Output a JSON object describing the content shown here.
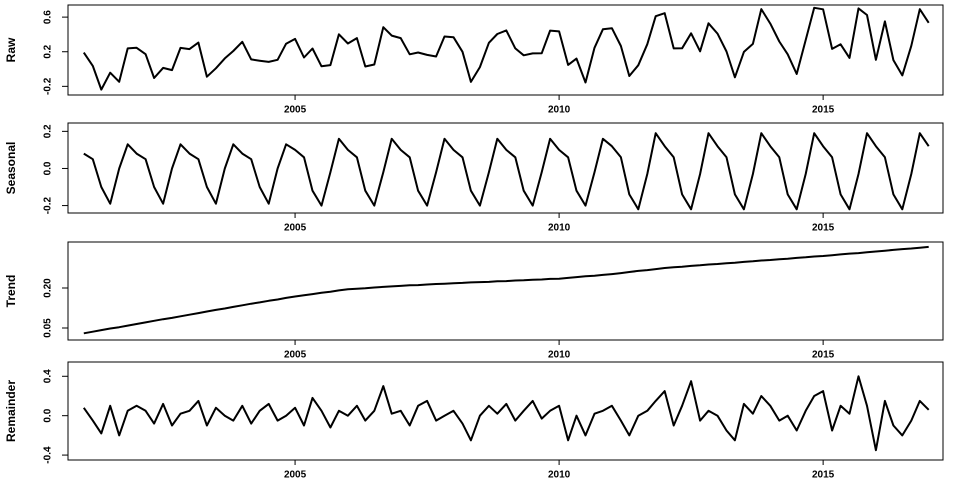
{
  "chart_data": [
    {
      "type": "line",
      "ylabel": "Raw",
      "color": "#000000",
      "x": [
        2001,
        2001.17,
        2001.33,
        2001.5,
        2001.67,
        2001.83,
        2002,
        2002.17,
        2002.33,
        2002.5,
        2002.67,
        2002.83,
        2003,
        2003.17,
        2003.33,
        2003.5,
        2003.67,
        2003.83,
        2004,
        2004.17,
        2004.33,
        2004.5,
        2004.67,
        2004.83,
        2005,
        2005.17,
        2005.33,
        2005.5,
        2005.67,
        2005.83,
        2006,
        2006.17,
        2006.33,
        2006.5,
        2006.67,
        2006.83,
        2007,
        2007.17,
        2007.33,
        2007.5,
        2007.67,
        2007.83,
        2008,
        2008.17,
        2008.33,
        2008.5,
        2008.67,
        2008.83,
        2009,
        2009.17,
        2009.33,
        2009.5,
        2009.67,
        2009.83,
        2010,
        2010.17,
        2010.33,
        2010.5,
        2010.67,
        2010.83,
        2011,
        2011.17,
        2011.33,
        2011.5,
        2011.67,
        2011.83,
        2012,
        2012.17,
        2012.33,
        2012.5,
        2012.67,
        2012.83,
        2013,
        2013.17,
        2013.33,
        2013.5,
        2013.67,
        2013.83,
        2014,
        2014.17,
        2014.33,
        2014.5,
        2014.67,
        2014.83,
        2015,
        2015.17,
        2015.33,
        2015.5,
        2015.67,
        2015.83,
        2016,
        2016.17,
        2016.33,
        2016.5,
        2016.67,
        2016.83,
        2017
      ],
      "values": [
        0.19,
        0.036,
        -0.238,
        -0.042,
        -0.147,
        0.239,
        0.245,
        0.171,
        -0.103,
        0.013,
        -0.012,
        0.244,
        0.23,
        0.306,
        -0.088,
        0.008,
        0.123,
        0.209,
        0.315,
        0.111,
        0.096,
        0.082,
        0.107,
        0.293,
        0.348,
        0.133,
        0.237,
        0.032,
        0.046,
        0.401,
        0.295,
        0.357,
        0.029,
        0.052,
        0.484,
        0.386,
        0.358,
        0.17,
        0.191,
        0.163,
        0.145,
        0.376,
        0.368,
        0.199,
        -0.149,
        0.022,
        0.303,
        0.405,
        0.446,
        0.238,
        0.159,
        0.181,
        0.182,
        0.444,
        0.435,
        0.048,
        0.121,
        -0.156,
        0.246,
        0.459,
        0.472,
        0.266,
        -0.08,
        0.044,
        0.287,
        0.611,
        0.645,
        0.238,
        0.24,
        0.413,
        0.205,
        0.528,
        0.41,
        0.203,
        -0.095,
        0.198,
        0.29,
        0.693,
        0.525,
        0.318,
        0.17,
        -0.057,
        0.335,
        0.708,
        0.69,
        0.233,
        0.286,
        0.129,
        0.701,
        0.624,
        0.107,
        0.55,
        0.103,
        -0.074,
        0.268,
        0.691,
        0.534
      ],
      "xlim": [
        2000.7,
        2017.27
      ],
      "xticks": [
        2005,
        2010,
        2015
      ],
      "ylim": [
        -0.3,
        0.74
      ],
      "yticks": [
        -0.2,
        0.2,
        0.6
      ]
    },
    {
      "type": "line",
      "ylabel": "Seasonal",
      "color": "#000000",
      "x": [
        2001,
        2001.17,
        2001.33,
        2001.5,
        2001.67,
        2001.83,
        2002,
        2002.17,
        2002.33,
        2002.5,
        2002.67,
        2002.83,
        2003,
        2003.17,
        2003.33,
        2003.5,
        2003.67,
        2003.83,
        2004,
        2004.17,
        2004.33,
        2004.5,
        2004.67,
        2004.83,
        2005,
        2005.17,
        2005.33,
        2005.5,
        2005.67,
        2005.83,
        2006,
        2006.17,
        2006.33,
        2006.5,
        2006.67,
        2006.83,
        2007,
        2007.17,
        2007.33,
        2007.5,
        2007.67,
        2007.83,
        2008,
        2008.17,
        2008.33,
        2008.5,
        2008.67,
        2008.83,
        2009,
        2009.17,
        2009.33,
        2009.5,
        2009.67,
        2009.83,
        2010,
        2010.17,
        2010.33,
        2010.5,
        2010.67,
        2010.83,
        2011,
        2011.17,
        2011.33,
        2011.5,
        2011.67,
        2011.83,
        2012,
        2012.17,
        2012.33,
        2012.5,
        2012.67,
        2012.83,
        2013,
        2013.17,
        2013.33,
        2013.5,
        2013.67,
        2013.83,
        2014,
        2014.17,
        2014.33,
        2014.5,
        2014.67,
        2014.83,
        2015,
        2015.17,
        2015.33,
        2015.5,
        2015.67,
        2015.83,
        2016,
        2016.17,
        2016.33,
        2016.5,
        2016.67,
        2016.83,
        2017
      ],
      "values": [
        0.08,
        0.05,
        -0.1,
        -0.19,
        0,
        0.13,
        0.08,
        0.05,
        -0.1,
        -0.19,
        0,
        0.13,
        0.08,
        0.05,
        -0.1,
        -0.19,
        0,
        0.13,
        0.08,
        0.05,
        -0.1,
        -0.19,
        0,
        0.13,
        0.1,
        0.06,
        -0.12,
        -0.2,
        -0.02,
        0.16,
        0.1,
        0.06,
        -0.12,
        -0.2,
        -0.02,
        0.16,
        0.1,
        0.06,
        -0.12,
        -0.2,
        -0.02,
        0.16,
        0.1,
        0.06,
        -0.12,
        -0.2,
        -0.02,
        0.16,
        0.1,
        0.06,
        -0.12,
        -0.2,
        -0.02,
        0.16,
        0.1,
        0.06,
        -0.12,
        -0.2,
        -0.02,
        0.16,
        0.12,
        0.06,
        -0.14,
        -0.22,
        -0.03,
        0.19,
        0.12,
        0.06,
        -0.14,
        -0.22,
        -0.03,
        0.19,
        0.12,
        0.06,
        -0.14,
        -0.22,
        -0.03,
        0.19,
        0.12,
        0.06,
        -0.14,
        -0.22,
        -0.03,
        0.19,
        0.12,
        0.06,
        -0.14,
        -0.22,
        -0.03,
        0.19,
        0.12,
        0.06,
        -0.14,
        -0.22,
        -0.03,
        0.19,
        0.12
      ],
      "xlim": [
        2000.7,
        2017.27
      ],
      "xticks": [
        2005,
        2010,
        2015
      ],
      "ylim": [
        -0.24,
        0.245
      ],
      "yticks": [
        -0.2,
        {
          "value": 0,
          "label": "0.0"
        },
        0.2
      ]
    },
    {
      "type": "line",
      "ylabel": "Trend",
      "color": "#000000",
      "x": [
        2001,
        2001.17,
        2001.33,
        2001.5,
        2001.67,
        2001.83,
        2002,
        2002.17,
        2002.33,
        2002.5,
        2002.67,
        2002.83,
        2003,
        2003.17,
        2003.33,
        2003.5,
        2003.67,
        2003.83,
        2004,
        2004.17,
        2004.33,
        2004.5,
        2004.67,
        2004.83,
        2005,
        2005.17,
        2005.33,
        2005.5,
        2005.67,
        2005.83,
        2006,
        2006.17,
        2006.33,
        2006.5,
        2006.67,
        2006.83,
        2007,
        2007.17,
        2007.33,
        2007.5,
        2007.67,
        2007.83,
        2008,
        2008.17,
        2008.33,
        2008.5,
        2008.67,
        2008.83,
        2009,
        2009.17,
        2009.33,
        2009.5,
        2009.67,
        2009.83,
        2010,
        2010.17,
        2010.33,
        2010.5,
        2010.67,
        2010.83,
        2011,
        2011.17,
        2011.33,
        2011.5,
        2011.67,
        2011.83,
        2012,
        2012.17,
        2012.33,
        2012.5,
        2012.67,
        2012.83,
        2013,
        2013.17,
        2013.33,
        2013.5,
        2013.67,
        2013.83,
        2014,
        2014.17,
        2014.33,
        2014.5,
        2014.67,
        2014.83,
        2015,
        2015.17,
        2015.33,
        2015.5,
        2015.67,
        2015.83,
        2016,
        2016.17,
        2016.33,
        2016.5,
        2016.67,
        2016.83,
        2017
      ],
      "values": [
        0.03,
        0.036,
        0.042,
        0.048,
        0.053,
        0.059,
        0.065,
        0.071,
        0.077,
        0.083,
        0.088,
        0.094,
        0.1,
        0.106,
        0.112,
        0.118,
        0.123,
        0.129,
        0.135,
        0.141,
        0.146,
        0.152,
        0.157,
        0.163,
        0.168,
        0.173,
        0.177,
        0.182,
        0.186,
        0.191,
        0.195,
        0.197,
        0.199,
        0.202,
        0.204,
        0.206,
        0.208,
        0.21,
        0.211,
        0.213,
        0.215,
        0.216,
        0.218,
        0.219,
        0.221,
        0.222,
        0.223,
        0.225,
        0.226,
        0.228,
        0.229,
        0.231,
        0.232,
        0.234,
        0.235,
        0.238,
        0.241,
        0.244,
        0.246,
        0.249,
        0.252,
        0.256,
        0.26,
        0.264,
        0.267,
        0.271,
        0.275,
        0.278,
        0.28,
        0.283,
        0.285,
        0.288,
        0.29,
        0.293,
        0.295,
        0.298,
        0.3,
        0.303,
        0.305,
        0.308,
        0.31,
        0.313,
        0.315,
        0.318,
        0.32,
        0.323,
        0.326,
        0.329,
        0.331,
        0.334,
        0.337,
        0.34,
        0.343,
        0.346,
        0.348,
        0.351,
        0.354
      ],
      "xlim": [
        2000.7,
        2017.27
      ],
      "xticks": [
        2005,
        2010,
        2015
      ],
      "ylim": [
        0.005,
        0.3725
      ],
      "yticks": [
        0.05,
        {
          "value": 0.2,
          "label": "0.20"
        }
      ]
    },
    {
      "type": "line",
      "ylabel": "Remainder",
      "color": "#000000",
      "x": [
        2001,
        2001.17,
        2001.33,
        2001.5,
        2001.67,
        2001.83,
        2002,
        2002.17,
        2002.33,
        2002.5,
        2002.67,
        2002.83,
        2003,
        2003.17,
        2003.33,
        2003.5,
        2003.67,
        2003.83,
        2004,
        2004.17,
        2004.33,
        2004.5,
        2004.67,
        2004.83,
        2005,
        2005.17,
        2005.33,
        2005.5,
        2005.67,
        2005.83,
        2006,
        2006.17,
        2006.33,
        2006.5,
        2006.67,
        2006.83,
        2007,
        2007.17,
        2007.33,
        2007.5,
        2007.67,
        2007.83,
        2008,
        2008.17,
        2008.33,
        2008.5,
        2008.67,
        2008.83,
        2009,
        2009.17,
        2009.33,
        2009.5,
        2009.67,
        2009.83,
        2010,
        2010.17,
        2010.33,
        2010.5,
        2010.67,
        2010.83,
        2011,
        2011.17,
        2011.33,
        2011.5,
        2011.67,
        2011.83,
        2012,
        2012.17,
        2012.33,
        2012.5,
        2012.67,
        2012.83,
        2013,
        2013.17,
        2013.33,
        2013.5,
        2013.67,
        2013.83,
        2014,
        2014.17,
        2014.33,
        2014.5,
        2014.67,
        2014.83,
        2015,
        2015.17,
        2015.33,
        2015.5,
        2015.67,
        2015.83,
        2016,
        2016.17,
        2016.33,
        2016.5,
        2016.67,
        2016.83,
        2017
      ],
      "values": [
        0.08,
        -0.05,
        -0.18,
        0.1,
        -0.2,
        0.05,
        0.1,
        0.05,
        -0.08,
        0.12,
        -0.1,
        0.02,
        0.05,
        0.15,
        -0.1,
        0.08,
        0,
        -0.05,
        0.1,
        -0.08,
        0.05,
        0.12,
        -0.05,
        0,
        0.08,
        -0.1,
        0.18,
        0.05,
        -0.12,
        0.05,
        0,
        0.1,
        -0.05,
        0.05,
        0.3,
        0.02,
        0.05,
        -0.1,
        0.1,
        0.15,
        -0.05,
        0,
        0.05,
        -0.08,
        -0.25,
        0,
        0.1,
        0.02,
        0.12,
        -0.05,
        0.05,
        0.15,
        -0.03,
        0.05,
        0.1,
        -0.25,
        0,
        -0.2,
        0.02,
        0.05,
        0.1,
        -0.05,
        -0.2,
        0,
        0.05,
        0.15,
        0.25,
        -0.1,
        0.1,
        0.35,
        -0.05,
        0.05,
        0,
        -0.15,
        -0.25,
        0.12,
        0.02,
        0.2,
        0.1,
        -0.05,
        0,
        -0.15,
        0.05,
        0.2,
        0.25,
        -0.15,
        0.1,
        0.02,
        0.4,
        0.1,
        -0.35,
        0.15,
        -0.1,
        -0.2,
        -0.05,
        0.15,
        0.06
      ],
      "xlim": [
        2000.7,
        2017.27
      ],
      "xticks": [
        2005,
        2010,
        2015
      ],
      "ylim": [
        -0.45,
        0.545
      ],
      "yticks": [
        -0.4,
        {
          "value": 0,
          "label": "0.0"
        },
        0.4
      ]
    }
  ]
}
